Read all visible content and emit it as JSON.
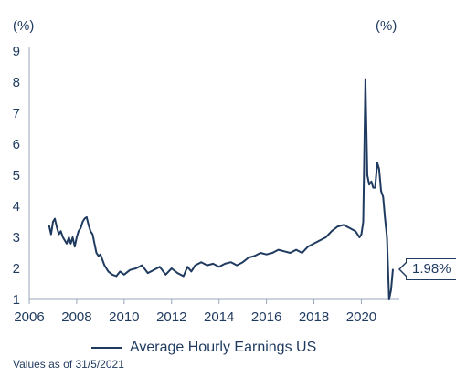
{
  "chart_data": {
    "type": "line",
    "unit_left": "(%)",
    "unit_right": "(%)",
    "xlim": [
      2006,
      2021.5
    ],
    "ylim": [
      1,
      9
    ],
    "x_ticks": [
      2006,
      2008,
      2010,
      2012,
      2014,
      2016,
      2018,
      2020
    ],
    "y_ticks": [
      1,
      2,
      3,
      4,
      5,
      6,
      7,
      8,
      9
    ],
    "grid": false,
    "legend_position": "bottom",
    "series": [
      {
        "name": "Average Hourly Earnings US",
        "color": "#1f3a5f",
        "x": [
          2006.83,
          2006.92,
          2007.0,
          2007.08,
          2007.17,
          2007.25,
          2007.33,
          2007.42,
          2007.5,
          2007.58,
          2007.67,
          2007.75,
          2007.83,
          2007.92,
          2008.0,
          2008.08,
          2008.17,
          2008.25,
          2008.33,
          2008.42,
          2008.5,
          2008.58,
          2008.67,
          2008.75,
          2008.83,
          2008.92,
          2009.0,
          2009.17,
          2009.33,
          2009.5,
          2009.67,
          2009.83,
          2010.0,
          2010.25,
          2010.5,
          2010.75,
          2011.0,
          2011.25,
          2011.5,
          2011.75,
          2012.0,
          2012.25,
          2012.5,
          2012.67,
          2012.83,
          2013.0,
          2013.25,
          2013.5,
          2013.75,
          2014.0,
          2014.25,
          2014.5,
          2014.75,
          2015.0,
          2015.25,
          2015.5,
          2015.75,
          2016.0,
          2016.25,
          2016.5,
          2016.75,
          2017.0,
          2017.25,
          2017.5,
          2017.75,
          2018.0,
          2018.25,
          2018.5,
          2018.75,
          2019.0,
          2019.25,
          2019.5,
          2019.75,
          2019.92,
          2020.0,
          2020.08,
          2020.17,
          2020.25,
          2020.33,
          2020.42,
          2020.5,
          2020.58,
          2020.67,
          2020.75,
          2020.83,
          2020.92,
          2021.0,
          2021.08,
          2021.17,
          2021.25,
          2021.33
        ],
        "values": [
          3.4,
          3.1,
          3.5,
          3.6,
          3.3,
          3.1,
          3.2,
          3.0,
          2.9,
          2.8,
          3.0,
          2.8,
          3.0,
          2.7,
          3.0,
          3.2,
          3.3,
          3.5,
          3.6,
          3.65,
          3.4,
          3.2,
          3.1,
          2.8,
          2.5,
          2.4,
          2.45,
          2.1,
          1.9,
          1.8,
          1.75,
          1.9,
          1.8,
          1.95,
          2.0,
          2.1,
          1.85,
          1.95,
          2.05,
          1.8,
          2.0,
          1.85,
          1.75,
          2.05,
          1.9,
          2.1,
          2.2,
          2.1,
          2.15,
          2.05,
          2.15,
          2.2,
          2.1,
          2.2,
          2.35,
          2.4,
          2.5,
          2.45,
          2.5,
          2.6,
          2.55,
          2.5,
          2.6,
          2.5,
          2.7,
          2.8,
          2.9,
          3.0,
          3.2,
          3.35,
          3.4,
          3.3,
          3.2,
          3.0,
          3.1,
          3.5,
          8.1,
          5.0,
          4.7,
          4.8,
          4.6,
          4.6,
          5.4,
          5.2,
          4.5,
          4.3,
          3.6,
          3.0,
          1.0,
          1.3,
          1.98
        ]
      }
    ],
    "annotation": {
      "text": "1.98%",
      "x": 2021.33,
      "y": 1.98
    }
  },
  "legend": {
    "label": "Average Hourly Earnings US"
  },
  "footnote": "Values as of 31/5/2021"
}
